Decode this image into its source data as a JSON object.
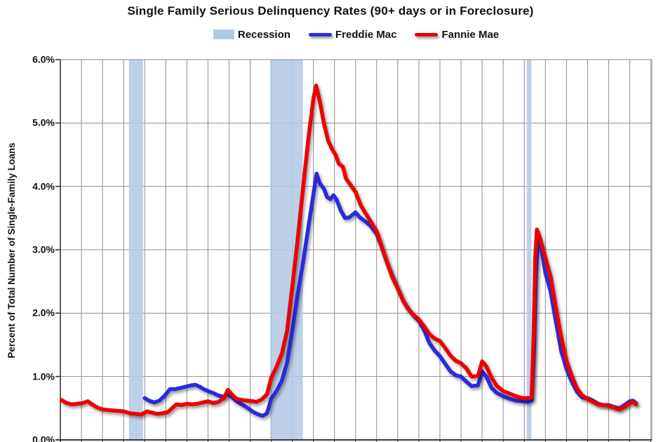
{
  "title": "Single Family Serious Delinquency Rates (90+ days or in Foreclosure)",
  "legend": [
    {
      "label": "Recession",
      "type": "patch"
    },
    {
      "label": "Freddie Mac",
      "type": "line"
    },
    {
      "label": "Fannie Mae",
      "type": "line"
    }
  ],
  "colors": {
    "recession": "#b4c9e6",
    "freddie": "#2b2bdd",
    "fannie": "#ec0000",
    "gridline": "#8e8e8e",
    "axis": "#393939"
  },
  "y_axis": {
    "title": "Percent of Total Number of Single-Family Loans",
    "tick_labels": [
      "6.0%",
      "5.0%",
      "4.0%",
      "3.0%",
      "2.0%",
      "1.0%",
      "0.0%"
    ],
    "tick_values": [
      6,
      5,
      4,
      3,
      2,
      1,
      0
    ]
  },
  "chart_data": {
    "type": "line",
    "title": "Single Family Serious Delinquency Rates (90+ days or in Foreclosure)",
    "xlabel": "",
    "ylabel": "Percent of Total Number of Single-Family Loans",
    "x_range": [
      1998,
      2026.05
    ],
    "y_range": [
      0,
      6
    ],
    "x_gridline_interval_years": 1,
    "y_gridline_interval_pct": 1,
    "grid": true,
    "legend_position": "top-center",
    "x_tick_labels_visible": false,
    "recession_bands": [
      [
        2001.25,
        2001.92
      ],
      [
        2007.95,
        2009.5
      ],
      [
        2020.12,
        2020.34
      ]
    ],
    "series": [
      {
        "name": "Freddie Mac",
        "unit": "percent",
        "points": [
          [
            2002.0,
            0.66
          ],
          [
            2002.2,
            0.62
          ],
          [
            2002.45,
            0.59
          ],
          [
            2002.7,
            0.62
          ],
          [
            2002.95,
            0.7
          ],
          [
            2003.2,
            0.8
          ],
          [
            2003.45,
            0.8
          ],
          [
            2003.7,
            0.82
          ],
          [
            2003.95,
            0.84
          ],
          [
            2004.2,
            0.86
          ],
          [
            2004.4,
            0.87
          ],
          [
            2004.6,
            0.84
          ],
          [
            2004.8,
            0.8
          ],
          [
            2005.0,
            0.77
          ],
          [
            2005.25,
            0.74
          ],
          [
            2005.5,
            0.7
          ],
          [
            2005.75,
            0.68
          ],
          [
            2005.95,
            0.73
          ],
          [
            2006.15,
            0.67
          ],
          [
            2006.4,
            0.6
          ],
          [
            2006.65,
            0.55
          ],
          [
            2006.9,
            0.5
          ],
          [
            2007.15,
            0.44
          ],
          [
            2007.4,
            0.4
          ],
          [
            2007.6,
            0.38
          ],
          [
            2007.8,
            0.42
          ],
          [
            2008.0,
            0.65
          ],
          [
            2008.25,
            0.77
          ],
          [
            2008.5,
            0.93
          ],
          [
            2008.75,
            1.22
          ],
          [
            2009.0,
            1.72
          ],
          [
            2009.25,
            2.29
          ],
          [
            2009.5,
            2.78
          ],
          [
            2009.75,
            3.33
          ],
          [
            2010.0,
            3.87
          ],
          [
            2010.15,
            4.2
          ],
          [
            2010.3,
            4.05
          ],
          [
            2010.5,
            3.96
          ],
          [
            2010.65,
            3.83
          ],
          [
            2010.8,
            3.8
          ],
          [
            2010.95,
            3.86
          ],
          [
            2011.1,
            3.79
          ],
          [
            2011.3,
            3.62
          ],
          [
            2011.5,
            3.5
          ],
          [
            2011.7,
            3.51
          ],
          [
            2011.85,
            3.55
          ],
          [
            2012.0,
            3.59
          ],
          [
            2012.2,
            3.51
          ],
          [
            2012.45,
            3.45
          ],
          [
            2012.7,
            3.38
          ],
          [
            2013.0,
            3.25
          ],
          [
            2013.25,
            3.03
          ],
          [
            2013.5,
            2.79
          ],
          [
            2013.75,
            2.58
          ],
          [
            2014.0,
            2.39
          ],
          [
            2014.25,
            2.2
          ],
          [
            2014.5,
            2.07
          ],
          [
            2014.75,
            1.96
          ],
          [
            2015.0,
            1.88
          ],
          [
            2015.25,
            1.73
          ],
          [
            2015.5,
            1.53
          ],
          [
            2015.75,
            1.41
          ],
          [
            2016.0,
            1.32
          ],
          [
            2016.25,
            1.2
          ],
          [
            2016.5,
            1.08
          ],
          [
            2016.75,
            1.02
          ],
          [
            2017.0,
            1.0
          ],
          [
            2017.25,
            0.92
          ],
          [
            2017.5,
            0.85
          ],
          [
            2017.8,
            0.86
          ],
          [
            2018.0,
            1.08
          ],
          [
            2018.2,
            1.0
          ],
          [
            2018.45,
            0.82
          ],
          [
            2018.7,
            0.74
          ],
          [
            2019.0,
            0.69
          ],
          [
            2019.3,
            0.65
          ],
          [
            2019.6,
            0.62
          ],
          [
            2019.9,
            0.61
          ],
          [
            2020.15,
            0.6
          ],
          [
            2020.35,
            0.62
          ],
          [
            2020.46,
            1.4
          ],
          [
            2020.55,
            2.6
          ],
          [
            2020.65,
            3.17
          ],
          [
            2020.8,
            3.03
          ],
          [
            2021.0,
            2.64
          ],
          [
            2021.25,
            2.34
          ],
          [
            2021.5,
            1.86
          ],
          [
            2021.75,
            1.4
          ],
          [
            2022.0,
            1.12
          ],
          [
            2022.25,
            0.92
          ],
          [
            2022.5,
            0.76
          ],
          [
            2022.75,
            0.67
          ],
          [
            2023.0,
            0.66
          ],
          [
            2023.25,
            0.62
          ],
          [
            2023.5,
            0.57
          ],
          [
            2023.75,
            0.55
          ],
          [
            2024.0,
            0.55
          ],
          [
            2024.25,
            0.52
          ],
          [
            2024.5,
            0.5
          ],
          [
            2024.75,
            0.55
          ],
          [
            2025.0,
            0.61
          ],
          [
            2025.15,
            0.62
          ],
          [
            2025.3,
            0.58
          ]
        ]
      },
      {
        "name": "Fannie Mae",
        "unit": "percent",
        "points": [
          [
            1998.05,
            0.63
          ],
          [
            1998.3,
            0.58
          ],
          [
            1998.55,
            0.56
          ],
          [
            1998.8,
            0.57
          ],
          [
            1999.05,
            0.58
          ],
          [
            1999.3,
            0.61
          ],
          [
            1999.5,
            0.56
          ],
          [
            1999.75,
            0.51
          ],
          [
            2000.0,
            0.48
          ],
          [
            2000.3,
            0.47
          ],
          [
            2000.6,
            0.46
          ],
          [
            2001.0,
            0.45
          ],
          [
            2001.3,
            0.42
          ],
          [
            2001.6,
            0.41
          ],
          [
            2001.85,
            0.4
          ],
          [
            2002.1,
            0.45
          ],
          [
            2002.35,
            0.43
          ],
          [
            2002.6,
            0.41
          ],
          [
            2002.85,
            0.42
          ],
          [
            2003.1,
            0.44
          ],
          [
            2003.3,
            0.5
          ],
          [
            2003.5,
            0.56
          ],
          [
            2003.75,
            0.55
          ],
          [
            2004.0,
            0.57
          ],
          [
            2004.25,
            0.56
          ],
          [
            2004.5,
            0.57
          ],
          [
            2004.75,
            0.59
          ],
          [
            2005.0,
            0.61
          ],
          [
            2005.25,
            0.58
          ],
          [
            2005.5,
            0.6
          ],
          [
            2005.75,
            0.66
          ],
          [
            2005.95,
            0.79
          ],
          [
            2006.15,
            0.71
          ],
          [
            2006.35,
            0.65
          ],
          [
            2006.6,
            0.63
          ],
          [
            2006.85,
            0.62
          ],
          [
            2007.1,
            0.61
          ],
          [
            2007.3,
            0.6
          ],
          [
            2007.55,
            0.64
          ],
          [
            2007.8,
            0.72
          ],
          [
            2008.0,
            0.98
          ],
          [
            2008.25,
            1.15
          ],
          [
            2008.5,
            1.36
          ],
          [
            2008.75,
            1.72
          ],
          [
            2009.0,
            2.42
          ],
          [
            2009.25,
            3.15
          ],
          [
            2009.5,
            3.94
          ],
          [
            2009.75,
            4.72
          ],
          [
            2010.0,
            5.38
          ],
          [
            2010.13,
            5.59
          ],
          [
            2010.3,
            5.35
          ],
          [
            2010.5,
            4.99
          ],
          [
            2010.7,
            4.72
          ],
          [
            2010.9,
            4.58
          ],
          [
            2011.05,
            4.5
          ],
          [
            2011.2,
            4.36
          ],
          [
            2011.4,
            4.31
          ],
          [
            2011.55,
            4.12
          ],
          [
            2011.75,
            4.03
          ],
          [
            2012.0,
            3.91
          ],
          [
            2012.25,
            3.7
          ],
          [
            2012.5,
            3.56
          ],
          [
            2012.75,
            3.43
          ],
          [
            2013.0,
            3.29
          ],
          [
            2013.25,
            3.04
          ],
          [
            2013.5,
            2.79
          ],
          [
            2013.75,
            2.56
          ],
          [
            2014.0,
            2.39
          ],
          [
            2014.25,
            2.2
          ],
          [
            2014.5,
            2.06
          ],
          [
            2014.75,
            1.97
          ],
          [
            2015.0,
            1.9
          ],
          [
            2015.25,
            1.79
          ],
          [
            2015.5,
            1.67
          ],
          [
            2015.75,
            1.6
          ],
          [
            2016.0,
            1.56
          ],
          [
            2016.25,
            1.45
          ],
          [
            2016.5,
            1.33
          ],
          [
            2016.75,
            1.25
          ],
          [
            2017.0,
            1.21
          ],
          [
            2017.25,
            1.13
          ],
          [
            2017.5,
            1.0
          ],
          [
            2017.8,
            1.01
          ],
          [
            2018.0,
            1.24
          ],
          [
            2018.2,
            1.16
          ],
          [
            2018.45,
            0.98
          ],
          [
            2018.7,
            0.85
          ],
          [
            2019.0,
            0.77
          ],
          [
            2019.3,
            0.73
          ],
          [
            2019.6,
            0.69
          ],
          [
            2019.9,
            0.66
          ],
          [
            2020.15,
            0.66
          ],
          [
            2020.35,
            0.67
          ],
          [
            2020.44,
            1.6
          ],
          [
            2020.52,
            2.9
          ],
          [
            2020.6,
            3.32
          ],
          [
            2020.75,
            3.18
          ],
          [
            2021.0,
            2.87
          ],
          [
            2021.25,
            2.58
          ],
          [
            2021.5,
            2.08
          ],
          [
            2021.75,
            1.62
          ],
          [
            2022.0,
            1.25
          ],
          [
            2022.25,
            1.01
          ],
          [
            2022.5,
            0.81
          ],
          [
            2022.75,
            0.7
          ],
          [
            2023.0,
            0.65
          ],
          [
            2023.25,
            0.6
          ],
          [
            2023.5,
            0.56
          ],
          [
            2023.75,
            0.55
          ],
          [
            2024.0,
            0.54
          ],
          [
            2024.25,
            0.51
          ],
          [
            2024.5,
            0.48
          ],
          [
            2024.75,
            0.52
          ],
          [
            2025.0,
            0.58
          ],
          [
            2025.15,
            0.6
          ],
          [
            2025.3,
            0.56
          ]
        ]
      }
    ],
    "annotations": {
      "fannie_peak": {
        "x": 2010.13,
        "y": 5.59
      },
      "freddie_peak": {
        "x": 2010.15,
        "y": 4.2
      },
      "covid_spike_peak_fannie": {
        "x": 2020.6,
        "y": 3.32
      },
      "covid_spike_peak_freddie": {
        "x": 2020.65,
        "y": 3.17
      },
      "hurricane_bump_2018_fannie": {
        "x": 2018.0,
        "y": 1.24
      },
      "katrina_bump_2006_fannie": {
        "x": 2005.95,
        "y": 0.79
      }
    }
  }
}
